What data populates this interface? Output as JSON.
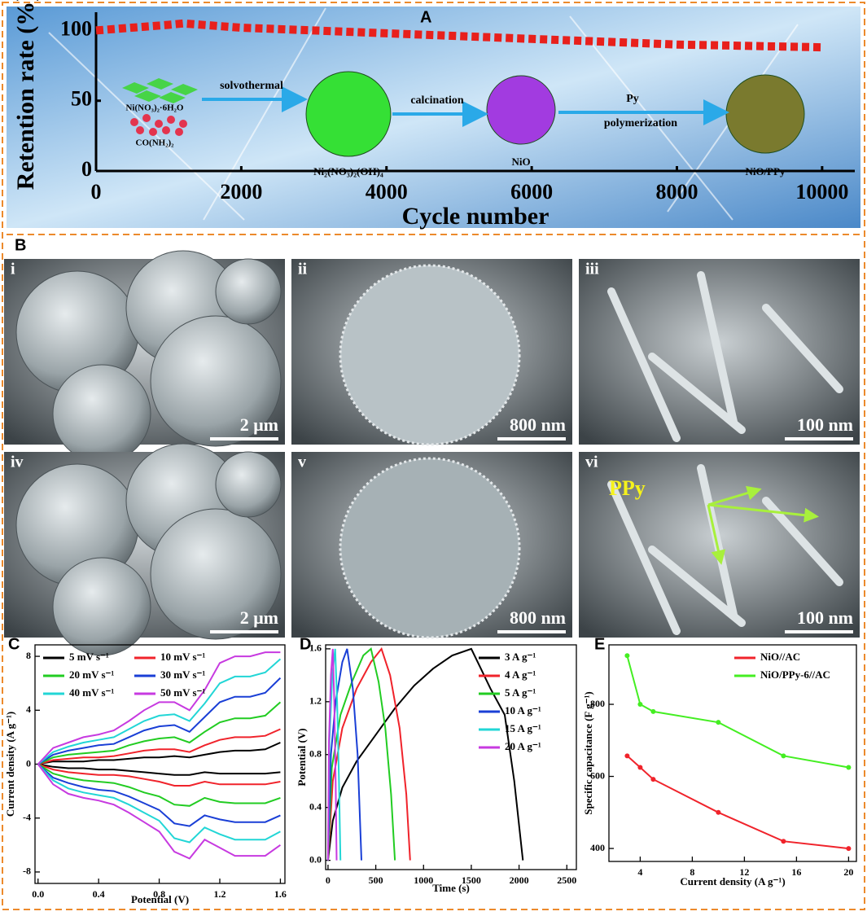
{
  "chart_data": [
    {
      "type": "line",
      "label": "A",
      "xlabel": "Cycle number",
      "ylabel": "Retention rate (%)",
      "x": [
        0,
        1000,
        1200,
        2000,
        3000,
        4000,
        5000,
        6000,
        7000,
        8000,
        9000,
        10000
      ],
      "values": [
        100,
        104,
        105,
        102,
        100,
        98,
        96,
        94,
        92,
        90,
        89,
        88
      ],
      "color": "#e8201c",
      "line_style": "dashed",
      "xlim": [
        0,
        10450
      ],
      "ylim": [
        0,
        113
      ],
      "xticks": [
        0,
        2000,
        4000,
        6000,
        8000,
        10000
      ],
      "yticks": [
        0,
        50,
        100
      ]
    },
    {
      "type": "line",
      "label": "C",
      "xlabel": "Potential (V)",
      "ylabel": "Current density (A g⁻¹)",
      "x": [
        0,
        0.1,
        0.2,
        0.3,
        0.4,
        0.5,
        0.6,
        0.7,
        0.8,
        0.9,
        1.0,
        1.1,
        1.2,
        1.3,
        1.4,
        1.5,
        1.6
      ],
      "series": [
        {
          "name": "5 mV s⁻¹",
          "color": "#000000",
          "upper": [
            0,
            0.2,
            0.2,
            0.2,
            0.3,
            0.3,
            0.4,
            0.5,
            0.5,
            0.6,
            0.5,
            0.7,
            0.9,
            1.0,
            1.0,
            1.1,
            1.6
          ],
          "lower": [
            0,
            -0.2,
            -0.3,
            -0.3,
            -0.4,
            -0.4,
            -0.5,
            -0.6,
            -0.7,
            -0.8,
            -0.8,
            -0.6,
            -0.7,
            -0.7,
            -0.7,
            -0.7,
            -0.6
          ]
        },
        {
          "name": "10 mV s⁻¹",
          "color": "#f0232b",
          "upper": [
            0,
            0.3,
            0.4,
            0.5,
            0.5,
            0.6,
            0.8,
            1.0,
            1.1,
            1.1,
            0.9,
            1.4,
            1.8,
            2.0,
            2.0,
            2.1,
            2.6
          ],
          "lower": [
            0,
            -0.4,
            -0.6,
            -0.7,
            -0.8,
            -0.8,
            -0.9,
            -1.1,
            -1.3,
            -1.6,
            -1.6,
            -1.3,
            -1.5,
            -1.5,
            -1.5,
            -1.5,
            -1.3
          ]
        },
        {
          "name": "20 mV s⁻¹",
          "color": "#22cc22",
          "upper": [
            0,
            0.5,
            0.7,
            0.8,
            0.9,
            1.0,
            1.4,
            1.7,
            1.9,
            2.0,
            1.6,
            2.4,
            3.1,
            3.4,
            3.4,
            3.6,
            4.6
          ],
          "lower": [
            0,
            -0.7,
            -1.0,
            -1.2,
            -1.3,
            -1.4,
            -1.7,
            -2.1,
            -2.4,
            -3.0,
            -3.1,
            -2.5,
            -2.8,
            -2.9,
            -2.9,
            -2.9,
            -2.5
          ]
        },
        {
          "name": "30 mV s⁻¹",
          "color": "#1a3fd6",
          "upper": [
            0,
            0.7,
            1.0,
            1.2,
            1.4,
            1.5,
            2.0,
            2.5,
            2.8,
            2.9,
            2.4,
            3.5,
            4.6,
            5.0,
            5.0,
            5.3,
            6.4
          ],
          "lower": [
            0,
            -1.0,
            -1.4,
            -1.7,
            -1.9,
            -2.0,
            -2.4,
            -2.9,
            -3.4,
            -4.4,
            -4.6,
            -3.8,
            -4.1,
            -4.3,
            -4.3,
            -4.3,
            -3.8
          ]
        },
        {
          "name": "40 mV s⁻¹",
          "color": "#22d6d6",
          "upper": [
            0,
            0.9,
            1.3,
            1.6,
            1.8,
            2.0,
            2.6,
            3.2,
            3.6,
            3.7,
            3.2,
            4.5,
            6.0,
            6.5,
            6.5,
            6.8,
            7.8
          ],
          "lower": [
            0,
            -1.2,
            -1.8,
            -2.1,
            -2.3,
            -2.5,
            -3.0,
            -3.6,
            -4.2,
            -5.5,
            -5.8,
            -4.7,
            -5.2,
            -5.6,
            -5.6,
            -5.6,
            -5.0
          ]
        },
        {
          "name": "50 mV s⁻¹",
          "color": "#c73ae0",
          "upper": [
            0,
            1.2,
            1.6,
            2.0,
            2.2,
            2.5,
            3.2,
            4.0,
            4.6,
            4.6,
            4.0,
            5.5,
            7.5,
            8.0,
            8.0,
            8.3,
            8.3
          ],
          "lower": [
            0,
            -1.5,
            -2.2,
            -2.5,
            -2.7,
            -3.0,
            -3.6,
            -4.3,
            -5.0,
            -6.5,
            -7.0,
            -5.6,
            -6.2,
            -6.8,
            -6.8,
            -6.8,
            -6.0
          ]
        }
      ],
      "legend": "upper left",
      "xlim": [
        -0.02,
        1.63
      ],
      "ylim": [
        -8.85,
        8.85
      ],
      "xticks": [
        {
          "value": 0,
          "label": "0.0"
        },
        0.4,
        0.8,
        1.2,
        1.6
      ],
      "yticks": [
        -8,
        -4,
        0,
        4,
        8
      ]
    },
    {
      "type": "line",
      "label": "D",
      "xlabel": "Time (s)",
      "ylabel": "Potential (V)",
      "series": [
        {
          "name": "3 A g⁻¹",
          "color": "#000000",
          "x": [
            0,
            50,
            150,
            300,
            500,
            700,
            900,
            1100,
            1300,
            1500,
            1600,
            1700,
            1850,
            1950,
            2040
          ],
          "values": [
            0,
            0.3,
            0.55,
            0.75,
            0.95,
            1.15,
            1.32,
            1.45,
            1.55,
            1.6,
            1.45,
            1.3,
            1.1,
            0.6,
            0
          ]
        },
        {
          "name": "4 A g⁻¹",
          "color": "#f0232b",
          "x": [
            0,
            50,
            150,
            300,
            450,
            560,
            650,
            750,
            820,
            860
          ],
          "values": [
            0,
            0.6,
            1.0,
            1.3,
            1.5,
            1.6,
            1.4,
            1.0,
            0.5,
            0
          ]
        },
        {
          "name": "5 A g⁻¹",
          "color": "#22cc22",
          "x": [
            0,
            40,
            130,
            250,
            370,
            450,
            530,
            600,
            660,
            700
          ],
          "values": [
            0,
            0.7,
            1.1,
            1.35,
            1.55,
            1.6,
            1.35,
            1.0,
            0.5,
            0
          ]
        },
        {
          "name": "10 A g⁻¹",
          "color": "#1a3fd6",
          "x": [
            0,
            30,
            80,
            150,
            200,
            260,
            310,
            350
          ],
          "values": [
            0,
            0.8,
            1.2,
            1.5,
            1.6,
            1.3,
            0.8,
            0
          ]
        },
        {
          "name": "15 A g⁻¹",
          "color": "#22d6d6",
          "x": [
            0,
            15,
            45,
            75,
            95,
            115,
            130
          ],
          "values": [
            0,
            0.9,
            1.4,
            1.6,
            1.2,
            0.6,
            0
          ]
        },
        {
          "name": "20 A g⁻¹",
          "color": "#c73ae0",
          "x": [
            0,
            10,
            30,
            50,
            65,
            80,
            90
          ],
          "values": [
            0,
            0.9,
            1.4,
            1.6,
            1.2,
            0.6,
            0
          ]
        }
      ],
      "legend": "upper right",
      "xlim": [
        -25,
        2600
      ],
      "ylim": [
        -0.07,
        1.63
      ],
      "xticks": [
        0,
        500,
        1000,
        1500,
        2000,
        2500
      ],
      "yticks": [
        {
          "value": 0,
          "label": "0.0"
        },
        0.4,
        0.8,
        1.2,
        1.6
      ]
    },
    {
      "type": "line",
      "label": "E",
      "xlabel": "Current density (A g⁻¹)",
      "ylabel": "Specific capacitance (F g⁻¹)",
      "x": [
        3,
        4,
        5,
        10,
        15,
        20
      ],
      "series": [
        {
          "name": "NiO//AC",
          "color": "#f0232b",
          "values": [
            657,
            625,
            592,
            500,
            420,
            400
          ]
        },
        {
          "name": "NiO/PPy-6//AC",
          "color": "#44ee22",
          "values": [
            935,
            800,
            780,
            750,
            657,
            625
          ]
        }
      ],
      "marker": "circle",
      "legend": "upper right",
      "xlim": [
        1.6,
        20.6
      ],
      "ylim": [
        364,
        965
      ],
      "xticks": [
        4,
        8,
        12,
        16,
        20
      ],
      "yticks": [
        400,
        600,
        800
      ]
    }
  ],
  "scheme": {
    "precursors": [
      "Ni(NO₃)₂·6H₂O",
      "CO(NH₂)₂"
    ],
    "steps": [
      [
        "solvothermal"
      ],
      [
        "calcination"
      ],
      [
        "Py",
        "polymerization"
      ]
    ],
    "products": [
      "Ni₂(NO₃)₂(OH)₄",
      "NiO",
      "NiO/PPy"
    ]
  },
  "images": {
    "label": "B",
    "items": [
      {
        "label": "i",
        "scale_bar": "2 μm"
      },
      {
        "label": "ii",
        "scale_bar": "800 nm"
      },
      {
        "label": "iii",
        "scale_bar": "100 nm"
      },
      {
        "label": "iv",
        "scale_bar": "2 μm"
      },
      {
        "label": "v",
        "scale_bar": "800 nm"
      },
      {
        "label": "vi",
        "scale_bar": "100 nm"
      }
    ],
    "annotation": "PPy"
  }
}
